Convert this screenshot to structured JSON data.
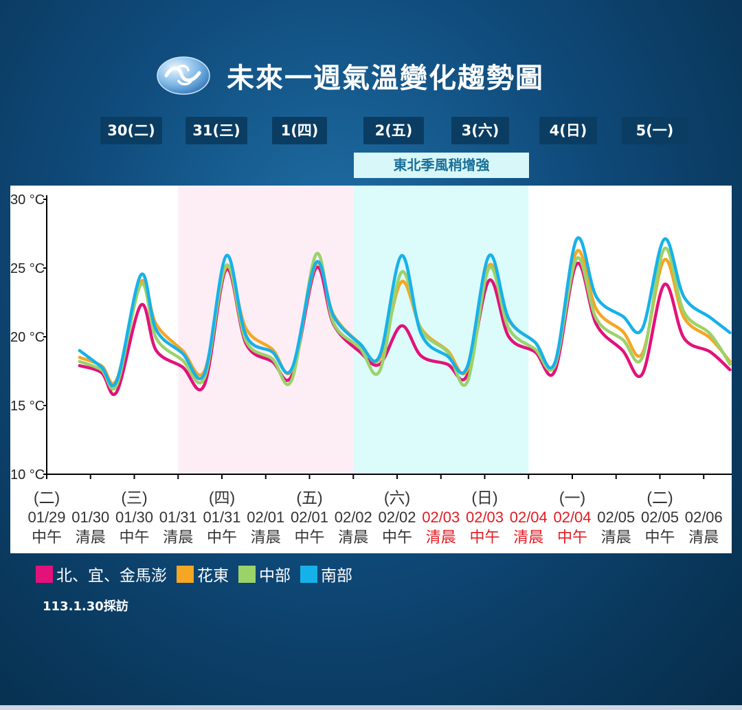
{
  "title": "未來一週氣溫變化趨勢圖",
  "day_labels": [
    "30(二)",
    "31(三)",
    "1(四)",
    "2(五)",
    "3(六)",
    "4(日)",
    "5(一)"
  ],
  "banner": "東北季風稍增強",
  "footnote": "113.1.30採訪",
  "colors": {
    "north": "#e2127a",
    "hualien": "#f5a623",
    "central": "#9bd26a",
    "south": "#17b1ea",
    "pink_band": "#fdeef6",
    "cyan_band": "#dcfbfb",
    "red_label": "#e31b23"
  },
  "legend": [
    {
      "label": "北、宜、金馬澎",
      "color": "#e2127a"
    },
    {
      "label": "花東",
      "color": "#f5a623"
    },
    {
      "label": "中部",
      "color": "#9bd26a"
    },
    {
      "label": "南部",
      "color": "#17b1ea"
    }
  ],
  "chart_data": {
    "type": "line",
    "y_unit": "°C",
    "ylim": [
      10,
      30
    ],
    "y_ticks": [
      "10 °C",
      "15 °C",
      "20 °C",
      "25 °C",
      "30 °C"
    ],
    "x_weekdays": [
      "(二)",
      "",
      "(三)",
      "",
      "(四)",
      "",
      "(五)",
      "",
      "(六)",
      "",
      "(日)",
      "",
      "(一)",
      "",
      "(二)"
    ],
    "x_dates": [
      "01/29",
      "01/30",
      "01/30",
      "01/31",
      "01/31",
      "02/01",
      "02/01",
      "02/02",
      "02/02",
      "02/03",
      "02/03",
      "02/04",
      "02/04",
      "02/05",
      "02/05",
      "02/06"
    ],
    "x_times": [
      "中午",
      "清晨",
      "中午",
      "清晨",
      "中午",
      "清晨",
      "中午",
      "清晨",
      "中午",
      "清晨",
      "中午",
      "清晨",
      "中午",
      "清晨",
      "中午",
      "清晨"
    ],
    "x_red": [
      false,
      false,
      false,
      false,
      false,
      false,
      false,
      false,
      false,
      true,
      true,
      true,
      true,
      false,
      false,
      false
    ],
    "x_weekday_red": [
      false,
      false,
      false,
      false,
      false,
      false,
      false,
      false,
      false,
      false,
      false,
      false,
      false,
      false,
      false
    ],
    "bands": [
      {
        "from": 3,
        "to": 7,
        "color": "#fdeef6"
      },
      {
        "from": 7,
        "to": 11,
        "color": "#dcfbfb"
      }
    ],
    "series": [
      {
        "name": "北、宜、金馬澎",
        "color": "#e2127a",
        "x": [
          0.75,
          1.25,
          1.6,
          2.15,
          2.5,
          3.1,
          3.6,
          4.1,
          4.55,
          5.15,
          5.6,
          6.15,
          6.55,
          7.15,
          7.6,
          8.1,
          8.55,
          9.15,
          9.6,
          10.1,
          10.55,
          11.15,
          11.6,
          12.1,
          12.55,
          13.15,
          13.6,
          14.1,
          14.55,
          15.15,
          15.6
        ],
        "values": [
          17.9,
          17.4,
          16.0,
          22.3,
          19.0,
          17.8,
          16.5,
          24.9,
          19.5,
          18.2,
          17.2,
          25.0,
          20.9,
          18.9,
          18.0,
          20.8,
          18.6,
          18.0,
          17.2,
          24.1,
          20.0,
          18.9,
          17.5,
          25.3,
          20.9,
          19.0,
          17.3,
          23.8,
          19.9,
          18.9,
          17.6
        ]
      },
      {
        "name": "花東",
        "color": "#f5a623",
        "x": [
          0.75,
          1.25,
          1.6,
          2.15,
          2.5,
          3.1,
          3.6,
          4.1,
          4.55,
          5.15,
          5.6,
          6.15,
          6.55,
          7.15,
          7.6,
          8.1,
          8.55,
          9.15,
          9.6,
          10.1,
          10.55,
          11.15,
          11.6,
          12.1,
          12.55,
          13.15,
          13.6,
          14.1,
          14.55,
          15.15,
          15.6
        ],
        "values": [
          18.5,
          17.9,
          16.9,
          24.0,
          20.9,
          19.0,
          17.5,
          25.1,
          20.6,
          19.1,
          17.6,
          25.3,
          21.6,
          19.5,
          18.4,
          24.0,
          20.6,
          19.0,
          17.6,
          25.2,
          21.2,
          19.6,
          17.9,
          26.2,
          22.0,
          20.4,
          18.8,
          25.6,
          21.4,
          19.9,
          18.2
        ]
      },
      {
        "name": "中部",
        "color": "#9bd26a",
        "x": [
          0.75,
          1.25,
          1.6,
          2.15,
          2.5,
          3.1,
          3.6,
          4.1,
          4.55,
          5.15,
          5.6,
          6.15,
          6.55,
          7.15,
          7.6,
          8.1,
          8.55,
          9.15,
          9.6,
          10.1,
          10.55,
          11.15,
          11.6,
          12.1,
          12.55,
          13.15,
          13.6,
          14.1,
          14.55,
          15.15,
          15.6
        ],
        "values": [
          18.2,
          17.6,
          16.5,
          23.8,
          19.9,
          18.3,
          17.0,
          25.2,
          19.7,
          18.4,
          16.9,
          26.0,
          21.0,
          19.2,
          17.5,
          24.7,
          20.5,
          18.9,
          16.7,
          25.0,
          20.6,
          19.1,
          17.9,
          25.7,
          21.3,
          19.8,
          18.5,
          26.4,
          21.8,
          20.2,
          18.0
        ]
      },
      {
        "name": "南部",
        "color": "#17b1ea",
        "x": [
          0.75,
          1.25,
          1.6,
          2.15,
          2.5,
          3.1,
          3.6,
          4.1,
          4.55,
          5.15,
          5.6,
          6.15,
          6.55,
          7.15,
          7.6,
          8.1,
          8.55,
          9.15,
          9.6,
          10.1,
          10.55,
          11.15,
          11.6,
          12.1,
          12.55,
          13.15,
          13.6,
          14.1,
          14.55,
          15.15,
          15.6
        ],
        "values": [
          19.0,
          17.8,
          16.8,
          24.5,
          20.5,
          18.8,
          17.3,
          25.9,
          20.1,
          18.9,
          17.7,
          25.4,
          21.5,
          19.5,
          18.6,
          25.9,
          20.2,
          18.6,
          17.8,
          25.9,
          21.3,
          19.6,
          18.1,
          27.1,
          22.9,
          21.5,
          20.6,
          27.1,
          22.9,
          21.4,
          20.3
        ]
      }
    ]
  }
}
